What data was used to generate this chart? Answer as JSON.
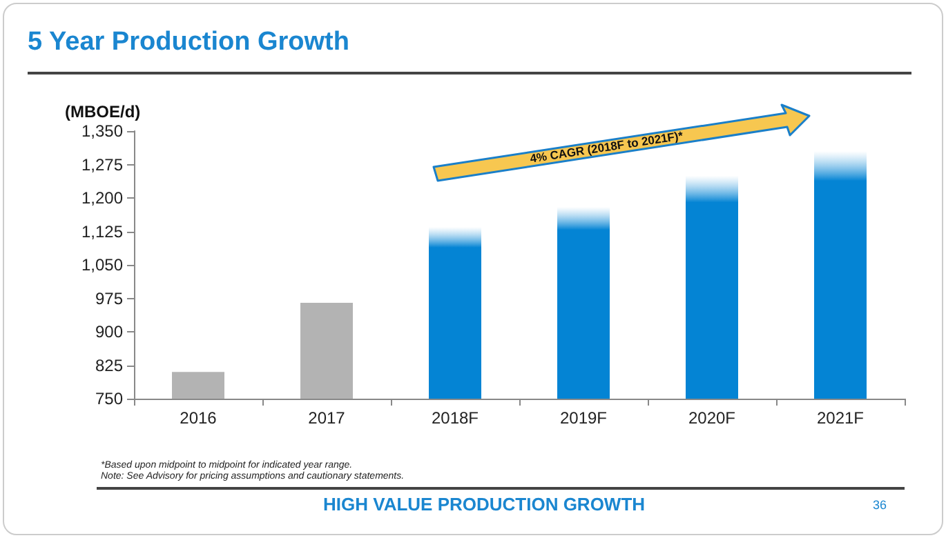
{
  "chart_data": {
    "type": "bar",
    "title": "5 Year Production Growth",
    "ylabel": "(MBOE/d)",
    "categories": [
      "2016",
      "2017",
      "2018F",
      "2019F",
      "2020F",
      "2021F"
    ],
    "values": [
      810,
      965,
      1135,
      1180,
      1250,
      1305
    ],
    "colors": [
      "#b3b3b3",
      "#b3b3b3",
      "#0484d4",
      "#0484d4",
      "#0484d4",
      "#0484d4"
    ],
    "ylim": [
      750,
      1350
    ],
    "yticks": [
      {
        "value": 750,
        "label": "750"
      },
      {
        "value": 825,
        "label": "825"
      },
      {
        "value": 900,
        "label": "900"
      },
      {
        "value": 975,
        "label": "975"
      },
      {
        "value": 1050,
        "label": "1,050"
      },
      {
        "value": 1125,
        "label": "1,125"
      },
      {
        "value": 1200,
        "label": "1,200"
      },
      {
        "value": 1275,
        "label": "1,275"
      },
      {
        "value": 1350,
        "label": "1,350"
      }
    ],
    "grid": false,
    "annotations": [
      "4% CAGR (2018F to 2021F)*",
      "*Based upon midpoint to midpoint for indicated year range.",
      "Note: See Advisory for pricing assumptions and cautionary statements.",
      "HIGH VALUE PRODUCTION GROWTH",
      "36"
    ]
  }
}
